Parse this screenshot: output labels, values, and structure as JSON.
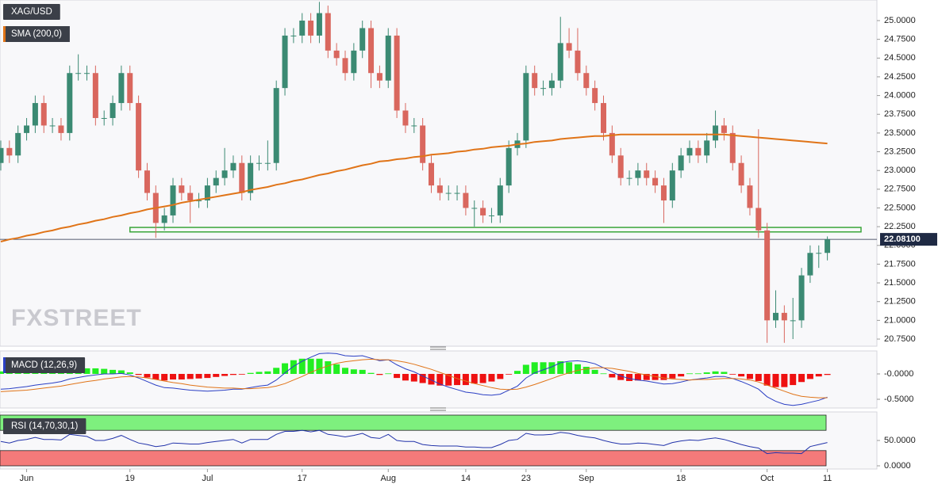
{
  "chart_data": [
    {
      "type": "candlestick",
      "name": "XAG/USD",
      "watermark": "FXSTREET",
      "up_color": "#3b8a73",
      "down_color": "#d9675e",
      "categories": [
        null,
        null,
        null,
        "Jun",
        null,
        null,
        null,
        null,
        null,
        null,
        null,
        null,
        null,
        null,
        null,
        "19",
        null,
        null,
        null,
        null,
        null,
        null,
        null,
        null,
        "Jul",
        null,
        null,
        null,
        null,
        null,
        null,
        null,
        null,
        null,
        null,
        "17",
        null,
        null,
        null,
        null,
        null,
        null,
        null,
        null,
        null,
        "Aug",
        null,
        null,
        null,
        null,
        null,
        null,
        null,
        null,
        "14",
        null,
        null,
        null,
        null,
        null,
        null,
        "23",
        null,
        null,
        null,
        null,
        null,
        null,
        "Sep",
        null,
        null,
        null,
        null,
        null,
        null,
        null,
        null,
        null,
        null,
        "18",
        null,
        null,
        null,
        null,
        null,
        null,
        null,
        null,
        null,
        "Oct",
        null,
        null,
        null,
        null,
        null,
        null,
        "11"
      ],
      "open": [
        23.1,
        23.3,
        23.2,
        23.5,
        23.6,
        23.9,
        23.6,
        23.6,
        23.5,
        24.3,
        24.3,
        24.3,
        23.7,
        23.7,
        23.9,
        24.3,
        23.9,
        23.0,
        22.7,
        22.3,
        22.4,
        22.8,
        22.7,
        22.6,
        22.6,
        22.8,
        22.9,
        23.0,
        23.1,
        22.7,
        23.1,
        23.1,
        23.1,
        24.1,
        24.8,
        24.8,
        25.0,
        24.8,
        25.1,
        24.6,
        24.5,
        24.3,
        24.6,
        24.9,
        24.3,
        24.2,
        24.8,
        23.8,
        23.6,
        23.6,
        23.1,
        22.8,
        22.7,
        22.7,
        22.7,
        22.5,
        22.5,
        22.4,
        22.4,
        22.8,
        23.3,
        23.4,
        24.3,
        24.1,
        24.1,
        24.2,
        24.7,
        24.6,
        24.3,
        24.1,
        23.9,
        23.5,
        23.2,
        22.9,
        22.9,
        23.0,
        22.9,
        22.8,
        22.6,
        23.0,
        23.2,
        23.3,
        23.2,
        23.4,
        23.6,
        23.5,
        23.1,
        22.8,
        22.5,
        22.2,
        21.0,
        21.1,
        21.0,
        21.0,
        21.6,
        21.9,
        21.9
      ],
      "high": [
        23.4,
        23.4,
        23.6,
        23.7,
        24.0,
        24.0,
        23.7,
        23.7,
        24.4,
        24.55,
        24.4,
        24.4,
        23.8,
        24.0,
        24.4,
        24.4,
        24.0,
        23.1,
        22.8,
        22.5,
        22.9,
        22.9,
        22.8,
        22.7,
        22.9,
        23.0,
        23.3,
        23.2,
        23.2,
        23.2,
        23.2,
        23.4,
        24.2,
        24.9,
        24.9,
        25.1,
        25.1,
        25.25,
        25.2,
        24.7,
        24.6,
        24.7,
        25.0,
        25.0,
        24.4,
        24.9,
        24.9,
        23.9,
        23.7,
        23.7,
        23.2,
        22.9,
        22.8,
        22.8,
        22.8,
        22.6,
        22.6,
        22.5,
        22.9,
        23.4,
        23.5,
        24.4,
        24.4,
        24.2,
        24.3,
        25.05,
        24.9,
        24.9,
        24.4,
        24.2,
        24.0,
        23.6,
        23.3,
        23.0,
        23.1,
        23.1,
        23.0,
        22.9,
        23.1,
        23.3,
        23.4,
        23.4,
        23.5,
        23.8,
        23.7,
        23.6,
        23.2,
        22.9,
        23.55,
        22.3,
        21.4,
        21.2,
        21.3,
        21.7,
        22.0,
        22.0,
        22.12
      ],
      "low": [
        23.0,
        23.1,
        23.1,
        23.4,
        23.5,
        23.5,
        23.5,
        23.4,
        23.4,
        24.2,
        24.2,
        23.6,
        23.6,
        23.6,
        23.8,
        23.8,
        22.9,
        22.6,
        22.1,
        22.2,
        22.3,
        22.6,
        22.3,
        22.5,
        22.5,
        22.7,
        22.8,
        22.9,
        22.6,
        22.6,
        23.0,
        23.0,
        23.0,
        24.0,
        24.7,
        24.7,
        24.7,
        24.7,
        24.5,
        24.4,
        24.2,
        24.2,
        24.5,
        24.1,
        24.1,
        24.1,
        23.7,
        23.5,
        23.5,
        23.0,
        22.7,
        22.6,
        22.6,
        22.6,
        22.4,
        22.25,
        22.3,
        22.3,
        22.3,
        22.7,
        23.2,
        23.3,
        24.0,
        24.0,
        24.0,
        24.1,
        24.5,
        24.2,
        24.0,
        23.8,
        23.4,
        23.1,
        22.8,
        22.8,
        22.8,
        22.8,
        22.7,
        22.3,
        22.5,
        22.9,
        23.1,
        23.1,
        23.1,
        23.3,
        23.4,
        23.0,
        22.7,
        22.4,
        22.1,
        20.7,
        20.9,
        20.7,
        20.75,
        20.9,
        21.5,
        21.7,
        21.8
      ],
      "close": [
        23.3,
        23.2,
        23.5,
        23.6,
        23.9,
        23.6,
        23.6,
        23.5,
        24.3,
        24.3,
        24.3,
        23.7,
        23.7,
        23.9,
        24.3,
        23.9,
        23.0,
        22.7,
        22.3,
        22.4,
        22.8,
        22.7,
        22.6,
        22.6,
        22.8,
        22.9,
        23.0,
        23.1,
        22.7,
        23.1,
        23.1,
        23.1,
        24.1,
        24.8,
        24.8,
        25.0,
        24.8,
        25.1,
        24.6,
        24.5,
        24.3,
        24.6,
        24.9,
        24.3,
        24.2,
        24.8,
        23.8,
        23.6,
        23.6,
        23.1,
        22.8,
        22.7,
        22.7,
        22.7,
        22.5,
        22.5,
        22.4,
        22.4,
        22.8,
        23.3,
        23.4,
        24.3,
        24.1,
        24.1,
        24.2,
        24.7,
        24.6,
        24.3,
        24.1,
        23.9,
        23.5,
        23.2,
        22.9,
        22.9,
        23.0,
        22.9,
        22.8,
        22.6,
        23.0,
        23.2,
        23.3,
        23.2,
        23.4,
        23.6,
        23.5,
        23.1,
        22.8,
        22.5,
        22.2,
        21.0,
        21.1,
        21.0,
        21.0,
        21.6,
        21.9,
        21.9,
        22.081
      ],
      "series": [
        {
          "name": "SMA (200,0)",
          "color": "#e07418",
          "values": [
            22.05,
            22.08,
            22.1,
            22.13,
            22.15,
            22.18,
            22.2,
            22.23,
            22.25,
            22.28,
            22.3,
            22.33,
            22.35,
            22.38,
            22.4,
            22.43,
            22.45,
            22.48,
            22.5,
            22.52,
            22.54,
            22.57,
            22.59,
            22.61,
            22.63,
            22.65,
            22.67,
            22.69,
            22.71,
            22.74,
            22.76,
            22.78,
            22.81,
            22.83,
            22.86,
            22.88,
            22.91,
            22.94,
            22.96,
            22.99,
            23.01,
            23.04,
            23.07,
            23.09,
            23.12,
            23.13,
            23.15,
            23.16,
            23.18,
            23.19,
            23.21,
            23.22,
            23.23,
            23.25,
            23.26,
            23.28,
            23.29,
            23.31,
            23.32,
            23.33,
            23.35,
            23.36,
            23.38,
            23.39,
            23.4,
            23.42,
            23.43,
            23.44,
            23.45,
            23.46,
            23.46,
            23.47,
            23.48,
            23.48,
            23.48,
            23.48,
            23.48,
            23.48,
            23.48,
            23.48,
            23.48,
            23.48,
            23.48,
            23.48,
            23.48,
            23.47,
            23.46,
            23.45,
            23.44,
            23.43,
            23.42,
            23.41,
            23.4,
            23.39,
            23.38,
            23.37,
            23.36
          ]
        }
      ],
      "zone": {
        "low": 22.18,
        "high": 22.24,
        "color": "#3aa63a"
      },
      "last_price": {
        "value": 22.081,
        "label": "22.08100"
      },
      "ylim": [
        20.655,
        25.275
      ],
      "yticks": [
        {
          "value": 25,
          "label": "25.0000"
        },
        {
          "value": 24.75,
          "label": "24.7500"
        },
        {
          "value": 24.5,
          "label": "24.5000"
        },
        {
          "value": 24.25,
          "label": "24.2500"
        },
        {
          "value": 24,
          "label": "24.0000"
        },
        {
          "value": 23.75,
          "label": "23.7500"
        },
        {
          "value": 23.5,
          "label": "23.5000"
        },
        {
          "value": 23.25,
          "label": "23.2500"
        },
        {
          "value": 23,
          "label": "23.0000"
        },
        {
          "value": 22.75,
          "label": "22.7500"
        },
        {
          "value": 22.5,
          "label": "22.5000"
        },
        {
          "value": 22.25,
          "label": "22.2500"
        },
        {
          "value": 22,
          "label": "22.0000"
        },
        {
          "value": 21.75,
          "label": "21.7500"
        },
        {
          "value": 21.5,
          "label": "21.5000"
        },
        {
          "value": 21.25,
          "label": "21.2500"
        },
        {
          "value": 21,
          "label": "21.0000"
        },
        {
          "value": 20.75,
          "label": "20.7500"
        }
      ]
    },
    {
      "type": "macd",
      "name": "MACD (12,26,9)",
      "ylim": [
        -0.672,
        0.453
      ],
      "yticks": [
        {
          "value": 0,
          "label": "-0.0000"
        },
        {
          "value": -0.5,
          "label": "-0.5000"
        }
      ],
      "histogram": {
        "up_color": "#22ee22",
        "down_color": "#ee1111",
        "values": [
          0.05,
          0.05,
          0.06,
          0.07,
          0.08,
          0.08,
          0.08,
          0.09,
          0.11,
          0.11,
          0.11,
          0.11,
          0.1,
          0.08,
          0.07,
          0.03,
          -0.02,
          -0.07,
          -0.11,
          -0.13,
          -0.11,
          -0.11,
          -0.1,
          -0.09,
          -0.08,
          -0.06,
          -0.04,
          -0.02,
          -0.01,
          0.02,
          0.04,
          0.05,
          0.12,
          0.21,
          0.27,
          0.3,
          0.3,
          0.3,
          0.25,
          0.19,
          0.12,
          0.09,
          0.08,
          0.02,
          -0.02,
          0.01,
          -0.08,
          -0.13,
          -0.15,
          -0.18,
          -0.21,
          -0.23,
          -0.23,
          -0.22,
          -0.22,
          -0.19,
          -0.18,
          -0.15,
          -0.1,
          -0.01,
          0.06,
          0.18,
          0.23,
          0.23,
          0.23,
          0.25,
          0.23,
          0.19,
          0.14,
          0.08,
          0.01,
          -0.07,
          -0.12,
          -0.14,
          -0.13,
          -0.12,
          -0.12,
          -0.12,
          -0.09,
          -0.05,
          0.01,
          0.01,
          0.03,
          0.05,
          0.04,
          -0.01,
          -0.05,
          -0.1,
          -0.14,
          -0.23,
          -0.26,
          -0.26,
          -0.22,
          -0.16,
          -0.1,
          -0.05,
          -0.02
        ]
      },
      "series": [
        {
          "color": "#2b3fc4",
          "values": [
            -0.3,
            -0.29,
            -0.27,
            -0.25,
            -0.22,
            -0.2,
            -0.18,
            -0.15,
            -0.1,
            -0.07,
            -0.04,
            -0.02,
            0.0,
            0.0,
            0.01,
            -0.02,
            -0.08,
            -0.15,
            -0.22,
            -0.27,
            -0.28,
            -0.3,
            -0.32,
            -0.33,
            -0.34,
            -0.33,
            -0.32,
            -0.3,
            -0.3,
            -0.27,
            -0.24,
            -0.22,
            -0.12,
            0.02,
            0.15,
            0.25,
            0.33,
            0.4,
            0.41,
            0.4,
            0.36,
            0.35,
            0.36,
            0.31,
            0.26,
            0.28,
            0.18,
            0.1,
            0.04,
            -0.04,
            -0.12,
            -0.2,
            -0.26,
            -0.31,
            -0.36,
            -0.38,
            -0.41,
            -0.42,
            -0.4,
            -0.32,
            -0.24,
            -0.08,
            0.02,
            0.08,
            0.14,
            0.22,
            0.25,
            0.26,
            0.24,
            0.2,
            0.12,
            0.04,
            -0.04,
            -0.09,
            -0.12,
            -0.14,
            -0.17,
            -0.2,
            -0.19,
            -0.16,
            -0.12,
            -0.1,
            -0.08,
            -0.05,
            -0.05,
            -0.09,
            -0.15,
            -0.22,
            -0.3,
            -0.45,
            -0.54,
            -0.6,
            -0.62,
            -0.6,
            -0.56,
            -0.52,
            -0.46
          ]
        },
        {
          "color": "#e07418",
          "values": [
            -0.35,
            -0.34,
            -0.33,
            -0.32,
            -0.3,
            -0.28,
            -0.26,
            -0.24,
            -0.21,
            -0.18,
            -0.15,
            -0.13,
            -0.1,
            -0.08,
            -0.06,
            -0.05,
            -0.06,
            -0.08,
            -0.11,
            -0.14,
            -0.17,
            -0.19,
            -0.22,
            -0.24,
            -0.26,
            -0.27,
            -0.28,
            -0.28,
            -0.29,
            -0.29,
            -0.28,
            -0.27,
            -0.24,
            -0.19,
            -0.12,
            -0.05,
            0.03,
            0.1,
            0.16,
            0.21,
            0.24,
            0.26,
            0.28,
            0.29,
            0.28,
            0.28,
            0.26,
            0.23,
            0.19,
            0.14,
            0.09,
            0.03,
            -0.03,
            -0.09,
            -0.14,
            -0.19,
            -0.23,
            -0.27,
            -0.3,
            -0.31,
            -0.3,
            -0.26,
            -0.21,
            -0.15,
            -0.09,
            -0.03,
            0.02,
            0.07,
            0.1,
            0.12,
            0.12,
            0.11,
            0.08,
            0.05,
            0.01,
            -0.02,
            -0.05,
            -0.08,
            -0.1,
            -0.11,
            -0.12,
            -0.11,
            -0.11,
            -0.1,
            -0.09,
            -0.09,
            -0.1,
            -0.12,
            -0.16,
            -0.22,
            -0.28,
            -0.34,
            -0.4,
            -0.44,
            -0.46,
            -0.47,
            -0.47
          ]
        }
      ]
    },
    {
      "type": "line",
      "name": "RSI (14,70,30,1)",
      "ylim": [
        -6.25,
        106.25
      ],
      "yticks": [
        {
          "value": 50,
          "label": "50.0000"
        },
        {
          "value": 0,
          "label": "0.0000"
        }
      ],
      "bands": [
        {
          "from": 70,
          "to": 100,
          "color": "#7ef07e"
        },
        {
          "from": 0,
          "to": 30,
          "color": "#f47a7a"
        }
      ],
      "series": [
        {
          "color": "#2233aa",
          "values": [
            48,
            45,
            50,
            52,
            56,
            52,
            52,
            51,
            62,
            60,
            58,
            50,
            50,
            54,
            60,
            52,
            45,
            42,
            38,
            40,
            45,
            44,
            43,
            43,
            46,
            48,
            50,
            52,
            45,
            52,
            52,
            52,
            62,
            68,
            68,
            70,
            67,
            70,
            62,
            60,
            57,
            60,
            64,
            56,
            54,
            62,
            50,
            48,
            48,
            42,
            40,
            39,
            39,
            39,
            37,
            37,
            36,
            36,
            42,
            50,
            52,
            64,
            61,
            61,
            62,
            66,
            64,
            60,
            57,
            55,
            50,
            46,
            43,
            43,
            45,
            44,
            42,
            40,
            46,
            49,
            51,
            50,
            53,
            55,
            52,
            47,
            42,
            38,
            35,
            24,
            26,
            25,
            25,
            24,
            38,
            42,
            46
          ]
        }
      ]
    }
  ]
}
